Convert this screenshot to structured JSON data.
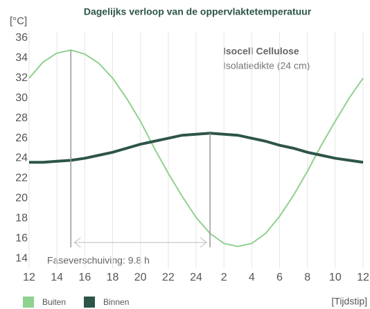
{
  "chart_data": {
    "type": "line",
    "title": "Dagelijks verloop van de oppervlaktetemperatuur",
    "y_label": "[°C]",
    "x_label": "[Tijdstip]",
    "annotations": [
      "Isocell Cellulose",
      "Isolatiedikte (24 cm)",
      "Faseverschuiving: 9.8 h"
    ],
    "x": [
      12,
      13,
      14,
      15,
      16,
      17,
      18,
      19,
      20,
      21,
      22,
      23,
      24,
      25,
      26,
      27,
      28,
      29,
      30,
      31,
      32,
      33,
      34,
      35,
      36
    ],
    "series": [
      {
        "name": "Buiten",
        "color": "#8fd18f",
        "values": [
          32,
          33.6,
          34.5,
          34.8,
          34.4,
          33.5,
          32,
          30,
          27.7,
          25,
          22.5,
          20.2,
          18.1,
          16.5,
          15.5,
          15.2,
          15.5,
          16.5,
          18.2,
          20.3,
          22.7,
          25.3,
          27.7,
          30,
          32
        ]
      },
      {
        "name": "Binnen",
        "color": "#2d5548",
        "values": [
          23.6,
          23.6,
          23.7,
          23.8,
          24,
          24.3,
          24.6,
          25,
          25.4,
          25.7,
          26,
          26.3,
          26.4,
          26.5,
          26.4,
          26.3,
          26,
          25.7,
          25.3,
          25,
          24.6,
          24.3,
          24,
          23.8,
          23.6
        ]
      }
    ],
    "xlim": [
      12,
      36
    ],
    "xticks": [
      12,
      14,
      16,
      18,
      20,
      22,
      24,
      {
        "value": 26,
        "label": "2"
      },
      {
        "value": 28,
        "label": "4"
      },
      {
        "value": 30,
        "label": "6"
      },
      {
        "value": 32,
        "label": "8"
      },
      {
        "value": 34,
        "label": "10"
      },
      {
        "value": 36,
        "label": "12"
      }
    ],
    "ylim": [
      13,
      37
    ],
    "yticks": [
      14,
      16,
      18,
      20,
      22,
      24,
      26,
      28,
      30,
      32,
      34,
      36
    ],
    "grid": true
  }
}
